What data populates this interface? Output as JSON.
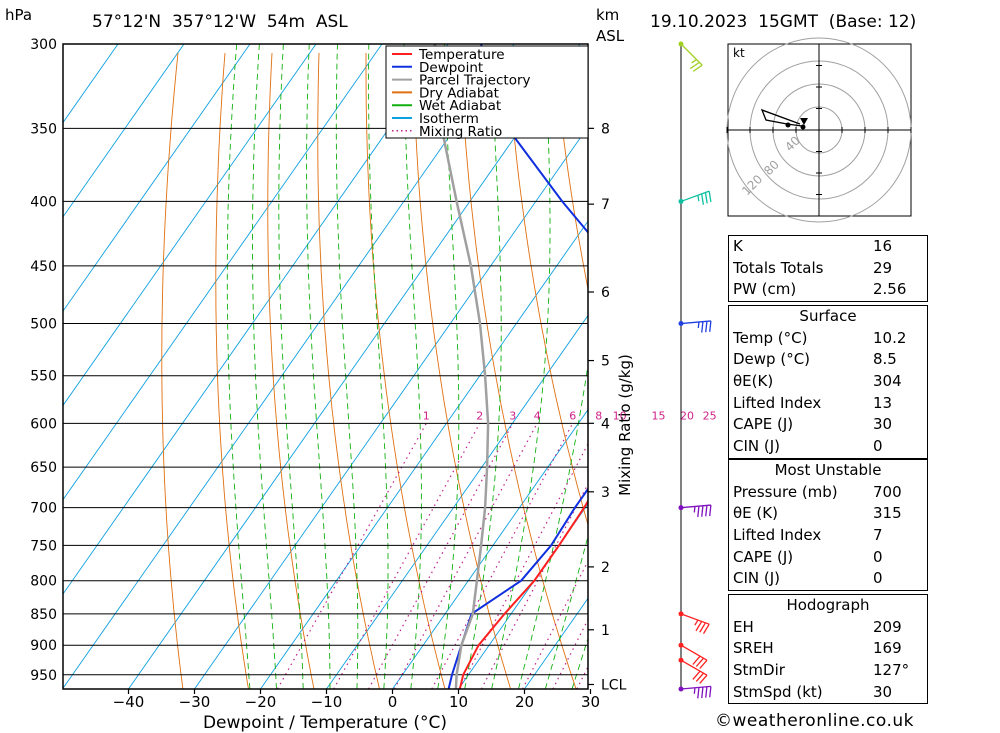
{
  "header": {
    "pressure_unit": "hPa",
    "location": "57°12'N  357°12'W  54m  ASL",
    "height_unit_km": "km",
    "height_unit_asl": "ASL",
    "datetime": "19.10.2023  15GMT  (Base: 12)"
  },
  "chart_data": {
    "type": "skew-t",
    "xlabel": "Dewpoint / Temperature (°C)",
    "ylabel": "hPa",
    "right_axis_label": "Mixing Ratio (g/kg)",
    "xlim": [
      -40,
      40
    ],
    "ylim": [
      975,
      300
    ],
    "pressure_ticks": [
      300,
      350,
      400,
      450,
      500,
      550,
      600,
      650,
      700,
      750,
      800,
      850,
      900,
      950
    ],
    "temp_ticks": [
      -40,
      -30,
      -20,
      -10,
      0,
      10,
      20,
      30
    ],
    "km_ticks": [
      {
        "p": 350,
        "label": "8"
      },
      {
        "p": 402,
        "label": "7"
      },
      {
        "p": 472,
        "label": "6"
      },
      {
        "p": 535,
        "label": "5"
      },
      {
        "p": 600,
        "label": "4"
      },
      {
        "p": 680,
        "label": "3"
      },
      {
        "p": 780,
        "label": "2"
      },
      {
        "p": 875,
        "label": "1"
      },
      {
        "p": 967,
        "label": "LCL"
      }
    ],
    "mixing_ratio_labels": [
      "1",
      "2",
      "3",
      "4",
      "6",
      "8",
      "10",
      "15",
      "20",
      "25"
    ],
    "legend": [
      {
        "name": "Temperature",
        "color": "#ff2020",
        "style": "solid"
      },
      {
        "name": "Dewpoint",
        "color": "#1030e0",
        "style": "solid"
      },
      {
        "name": "Parcel Trajectory",
        "color": "#a0a0a0",
        "style": "solid"
      },
      {
        "name": "Dry Adiabat",
        "color": "#e07010",
        "style": "solid"
      },
      {
        "name": "Wet Adiabat",
        "color": "#10b010",
        "style": "solid"
      },
      {
        "name": "Isotherm",
        "color": "#10a0e0",
        "style": "solid"
      },
      {
        "name": "Mixing Ratio",
        "color": "#c0208a",
        "style": "dotted"
      }
    ],
    "series": [
      {
        "name": "Temperature",
        "points": [
          [
            975,
            10.2
          ],
          [
            950,
            9.2
          ],
          [
            900,
            8.4
          ],
          [
            850,
            9.0
          ],
          [
            800,
            10.0
          ],
          [
            750,
            10.0
          ],
          [
            700,
            9.8
          ],
          [
            650,
            9.2
          ],
          [
            600,
            7.6
          ],
          [
            550,
            5.0
          ],
          [
            500,
            1.0
          ],
          [
            450,
            -4.0
          ],
          [
            400,
            -12.0
          ],
          [
            350,
            -20.0
          ],
          [
            300,
            -28.5
          ]
        ]
      },
      {
        "name": "Dewpoint",
        "points": [
          [
            975,
            8.5
          ],
          [
            950,
            7.5
          ],
          [
            900,
            5.8
          ],
          [
            850,
            4.0
          ],
          [
            800,
            8.0
          ],
          [
            750,
            8.8
          ],
          [
            700,
            8.4
          ],
          [
            650,
            8.4
          ],
          [
            600,
            6.6
          ],
          [
            550,
            3.5
          ],
          [
            500,
            -3.0
          ],
          [
            450,
            -11.0
          ],
          [
            400,
            -26.0
          ],
          [
            350,
            -42.0
          ],
          [
            300,
            -55.0
          ]
        ]
      },
      {
        "name": "Parcel Trajectory",
        "points": [
          [
            975,
            9.6
          ],
          [
            950,
            8.2
          ],
          [
            900,
            5.8
          ],
          [
            850,
            4.2
          ],
          [
            800,
            1.3
          ],
          [
            750,
            -1.8
          ],
          [
            700,
            -5.2
          ],
          [
            650,
            -9.2
          ],
          [
            600,
            -13.7
          ],
          [
            550,
            -19.2
          ],
          [
            500,
            -25.5
          ],
          [
            450,
            -33.0
          ],
          [
            400,
            -42.0
          ],
          [
            350,
            -52.0
          ],
          [
            300,
            -62.0
          ]
        ]
      }
    ],
    "wind_barbs": [
      {
        "p": 300,
        "color": "#a0d020",
        "speed_kt": 15,
        "dir_deg": 315
      },
      {
        "p": 400,
        "color": "#10c0a0",
        "speed_kt": 25,
        "dir_deg": 250
      },
      {
        "p": 500,
        "color": "#2040e0",
        "speed_kt": 25,
        "dir_deg": 265
      },
      {
        "p": 700,
        "color": "#8010c0",
        "speed_kt": 35,
        "dir_deg": 265
      },
      {
        "p": 850,
        "color": "#ff2020",
        "speed_kt": 25,
        "dir_deg": 290
      },
      {
        "p": 900,
        "color": "#ff2020",
        "speed_kt": 30,
        "dir_deg": 300
      },
      {
        "p": 925,
        "color": "#ff2020",
        "speed_kt": 30,
        "dir_deg": 300
      },
      {
        "p": 975,
        "color": "#8010c0",
        "speed_kt": 35,
        "dir_deg": 265
      }
    ],
    "hodograph": {
      "unit": "kt",
      "rings": [
        "40",
        "80",
        "120"
      ]
    }
  },
  "indices": {
    "general": [
      {
        "label": "K",
        "value": "16"
      },
      {
        "label": "Totals Totals",
        "value": "29"
      },
      {
        "label": "PW (cm)",
        "value": "2.56"
      }
    ],
    "surface": {
      "title": "Surface",
      "rows": [
        {
          "label": "Temp (°C)",
          "value": "10.2"
        },
        {
          "label": "Dewp (°C)",
          "value": "8.5"
        },
        {
          "label": "θE(K)",
          "value": "304"
        },
        {
          "label": "Lifted Index",
          "value": "13"
        },
        {
          "label": "CAPE (J)",
          "value": "30"
        },
        {
          "label": "CIN (J)",
          "value": "0"
        }
      ]
    },
    "most_unstable": {
      "title": "Most Unstable",
      "rows": [
        {
          "label": "Pressure (mb)",
          "value": "700"
        },
        {
          "label": "θE (K)",
          "value": "315"
        },
        {
          "label": "Lifted Index",
          "value": "7"
        },
        {
          "label": "CAPE (J)",
          "value": "0"
        },
        {
          "label": "CIN (J)",
          "value": "0"
        }
      ]
    },
    "hodograph": {
      "title": "Hodograph",
      "rows": [
        {
          "label": "EH",
          "value": "209"
        },
        {
          "label": "SREH",
          "value": "169"
        },
        {
          "label": "StmDir",
          "value": "127°"
        },
        {
          "label": "StmSpd (kt)",
          "value": "30"
        }
      ]
    }
  },
  "credit": "©weatheronline.co.uk"
}
